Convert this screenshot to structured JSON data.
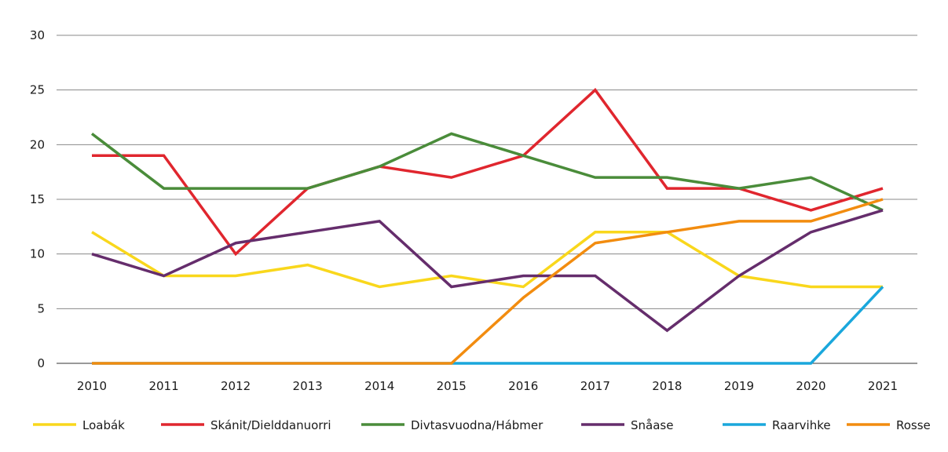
{
  "chart_data": {
    "type": "line",
    "title": "",
    "xlabel": "",
    "ylabel": "",
    "ylim": [
      0,
      30
    ],
    "yticks": [
      0,
      5,
      10,
      15,
      20,
      25,
      30
    ],
    "grid": true,
    "legend_position": "bottom",
    "x": [
      "2010",
      "2011",
      "2012",
      "2013",
      "2014",
      "2015",
      "2016",
      "2017",
      "2018",
      "2019",
      "2020",
      "2021"
    ],
    "series": [
      {
        "name": "Loabák",
        "color": "#f9d71c",
        "values": [
          12,
          8,
          8,
          9,
          7,
          8,
          7,
          12,
          12,
          8,
          7,
          7
        ]
      },
      {
        "name": "Skánit/Dielddanuorri",
        "color": "#e0262e",
        "values": [
          19,
          19,
          10,
          16,
          18,
          17,
          19,
          25,
          16,
          16,
          14,
          16
        ]
      },
      {
        "name": "Divtasvuodna/Hábmer",
        "color": "#4a8c3a",
        "values": [
          21,
          16,
          16,
          16,
          18,
          21,
          19,
          17,
          17,
          16,
          17,
          14
        ]
      },
      {
        "name": "Snåase",
        "color": "#652d6c",
        "values": [
          10,
          8,
          11,
          12,
          13,
          7,
          8,
          8,
          3,
          8,
          12,
          14
        ]
      },
      {
        "name": "Raarvihke",
        "color": "#1aa7dc",
        "values": [
          0,
          0,
          0,
          0,
          0,
          0,
          0,
          0,
          0,
          0,
          0,
          7
        ]
      },
      {
        "name": "Rosse",
        "color": "#f28c0f",
        "values": [
          0,
          0,
          0,
          0,
          0,
          0,
          6,
          11,
          12,
          13,
          13,
          15
        ]
      }
    ]
  }
}
